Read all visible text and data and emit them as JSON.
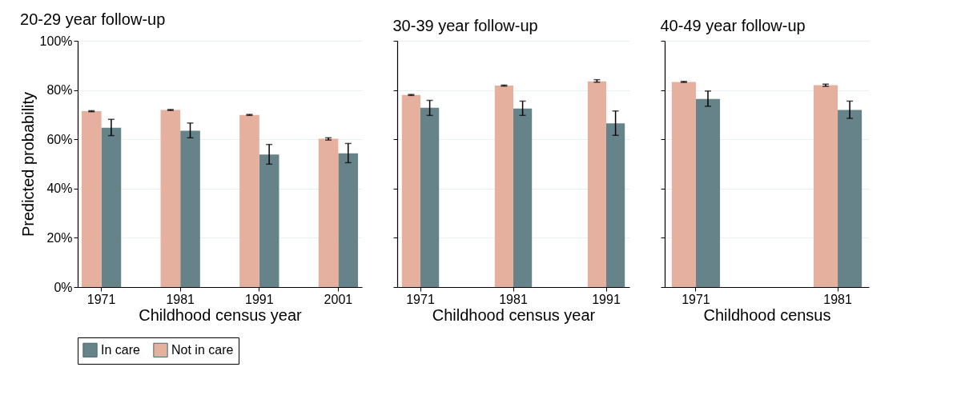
{
  "chart_data": [
    {
      "type": "bar",
      "title": "20-29 year follow-up",
      "xlabel": "Childhood census year",
      "ylabel": "Predicted probability",
      "categories": [
        "1971",
        "1981",
        "1991",
        "2001"
      ],
      "ylim": [
        0,
        100
      ],
      "yticks": [
        {
          "value": 0,
          "label": "0%"
        },
        {
          "value": 20,
          "label": "20%"
        },
        {
          "value": 40,
          "label": "40%"
        },
        {
          "value": 60,
          "label": "60%"
        },
        {
          "value": 80,
          "label": "80%"
        },
        {
          "value": 100,
          "label": "100%"
        }
      ],
      "grid": "y",
      "legend": "bottom",
      "series": [
        {
          "name": "In care",
          "color": "#66838a",
          "values": [
            64.7,
            63.5,
            53.8,
            54.3
          ],
          "errors": [
            [
              61.5,
              68.1
            ],
            [
              60.6,
              66.6
            ],
            [
              49.9,
              57.9
            ],
            [
              50.5,
              58.3
            ]
          ]
        },
        {
          "name": "Not in care",
          "color": "#e5b09e",
          "values": [
            71.4,
            71.9,
            69.9,
            60.2
          ],
          "errors": [
            [
              71.2,
              71.6
            ],
            [
              71.7,
              72.1
            ],
            [
              69.7,
              70.1
            ],
            [
              59.7,
              60.6
            ]
          ]
        }
      ]
    },
    {
      "type": "bar",
      "title": "30-39 year follow-up",
      "xlabel": "Childhood census year",
      "categories": [
        "1971",
        "1981",
        "1991"
      ],
      "ylim": [
        0,
        100
      ],
      "yticks": [
        {
          "value": 0,
          "label": null
        },
        {
          "value": 20,
          "label": null
        },
        {
          "value": 40,
          "label": null
        },
        {
          "value": 60,
          "label": null
        },
        {
          "value": 80,
          "label": null
        },
        {
          "value": 100,
          "label": null
        }
      ],
      "grid": "y",
      "tick_labels": "x",
      "series": [
        {
          "name": "In care",
          "color": "#66838a",
          "values": [
            72.8,
            72.5,
            66.5
          ],
          "errors": [
            [
              69.7,
              75.8
            ],
            [
              69.7,
              75.5
            ],
            [
              61.6,
              71.5
            ]
          ]
        },
        {
          "name": "Not in care",
          "color": "#e5b09e",
          "values": [
            78.0,
            81.8,
            83.5
          ],
          "errors": [
            [
              77.8,
              78.2
            ],
            [
              81.6,
              82.0
            ],
            [
              83.2,
              84.2
            ]
          ]
        }
      ]
    },
    {
      "type": "bar",
      "title": "40-49 year follow-up",
      "xlabel": "Childhood census",
      "categories": [
        "1971",
        "1981"
      ],
      "ylim": [
        0,
        100
      ],
      "yticks": [
        {
          "value": 0,
          "label": null
        },
        {
          "value": 20,
          "label": null
        },
        {
          "value": 40,
          "label": null
        },
        {
          "value": 60,
          "label": null
        },
        {
          "value": 80,
          "label": null
        },
        {
          "value": 100,
          "label": null
        }
      ],
      "grid": "y",
      "tick_labels": "x",
      "series": [
        {
          "name": "In care",
          "color": "#66838a",
          "values": [
            76.4,
            71.9
          ],
          "errors": [
            [
              73.4,
              79.6
            ],
            [
              68.5,
              75.5
            ]
          ]
        },
        {
          "name": "Not in care",
          "color": "#e5b09e",
          "values": [
            83.3,
            82.0
          ],
          "errors": [
            [
              83.1,
              83.5
            ],
            [
              81.5,
              82.4
            ]
          ]
        }
      ]
    }
  ]
}
